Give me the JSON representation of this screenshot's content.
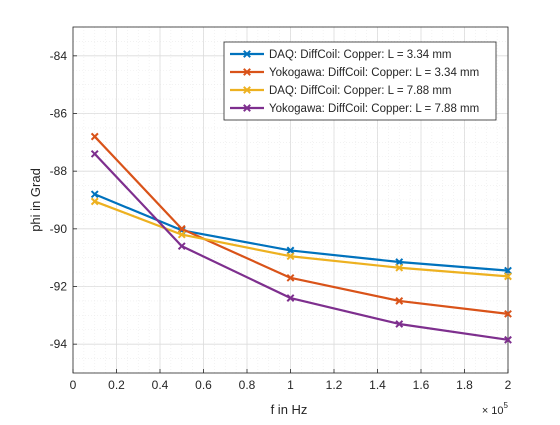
{
  "chart_data": {
    "type": "line",
    "xlabel": "f in Hz",
    "ylabel": "phi in Grad",
    "x_exponent_label": "× 10",
    "x_exponent_power": "5",
    "xlim": [
      0,
      200000
    ],
    "ylim": [
      -95,
      -83
    ],
    "grid": true,
    "minor_grid": true,
    "legend_position": "top-right",
    "x_ticks": [
      0,
      20000,
      40000,
      60000,
      80000,
      100000,
      120000,
      140000,
      160000,
      180000,
      200000
    ],
    "x_tick_labels": [
      "0",
      "0.2",
      "0.4",
      "0.6",
      "0.8",
      "1",
      "1.2",
      "1.4",
      "1.6",
      "1.8",
      "2"
    ],
    "y_ticks": [
      -94,
      -92,
      -90,
      -88,
      -86,
      -84
    ],
    "y_tick_labels": [
      "-94",
      "-92",
      "-90",
      "-88",
      "-86",
      "-84"
    ],
    "x": [
      10000,
      50000,
      100000,
      150000,
      200000
    ],
    "series": [
      {
        "name": "DAQ: DiffCoil: Copper: L = 3.34 mm",
        "color": "#0072BD",
        "values": [
          -88.8,
          -90.05,
          -90.75,
          -91.15,
          -91.45
        ]
      },
      {
        "name": "Yokogawa: DiffCoil: Copper: L = 3.34 mm",
        "color": "#D95319",
        "values": [
          -86.8,
          -90.0,
          -91.7,
          -92.5,
          -92.95
        ]
      },
      {
        "name": "DAQ: DiffCoil: Copper: L = 7.88 mm",
        "color": "#EDB120",
        "values": [
          -89.05,
          -90.2,
          -90.95,
          -91.35,
          -91.65
        ]
      },
      {
        "name": "Yokogawa: DiffCoil: Copper: L = 7.88 mm",
        "color": "#7E2F8E",
        "values": [
          -87.4,
          -90.6,
          -92.4,
          -93.3,
          -93.85
        ]
      }
    ]
  }
}
